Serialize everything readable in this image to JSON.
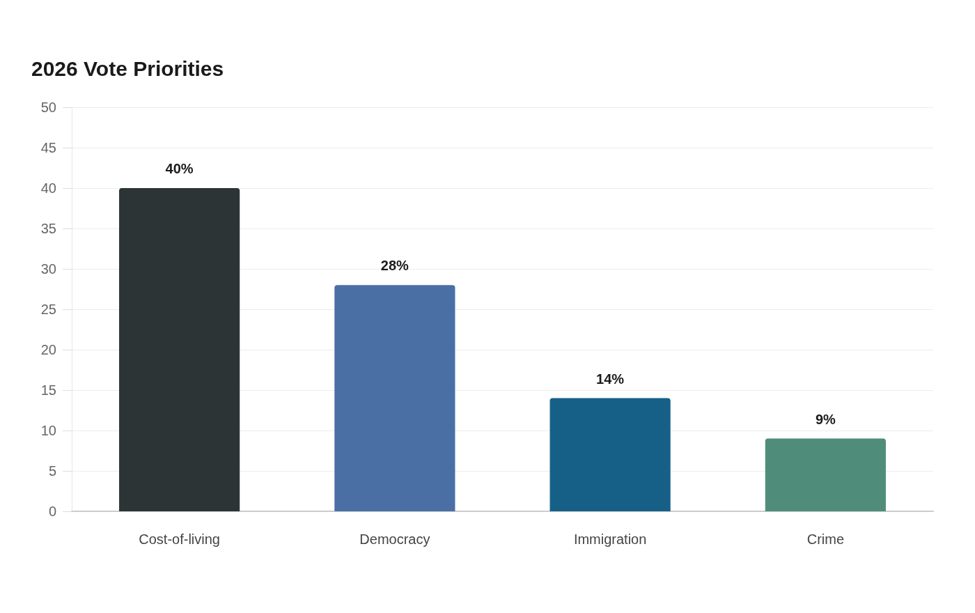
{
  "chart_data": {
    "type": "bar",
    "title": "2026 Vote Priorities",
    "categories": [
      "Cost-of-living",
      "Democracy",
      "Immigration",
      "Crime"
    ],
    "values": [
      40,
      28,
      14,
      9
    ],
    "colors": [
      "#2d3436",
      "#4a6fa5",
      "#166088",
      "#4f8d7a"
    ],
    "value_labels": [
      "40%",
      "28%",
      "14%",
      "9%"
    ],
    "ylim": [
      0,
      50
    ],
    "yticks": [
      0,
      5,
      10,
      15,
      20,
      25,
      30,
      35,
      40,
      45,
      50
    ],
    "grid": "y"
  }
}
